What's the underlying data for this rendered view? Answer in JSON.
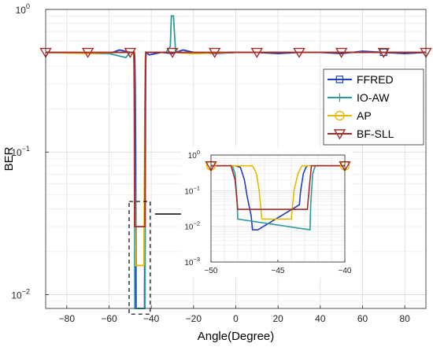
{
  "chart_data": [
    {
      "type": "line",
      "xlabel": "Angle(Degree)",
      "ylabel": "BER",
      "xlim": [
        -90,
        90
      ],
      "ylim": [
        0.008,
        1
      ],
      "yscale": "log",
      "grid": true,
      "legend_position": "right",
      "x_ticks": [
        -80,
        -60,
        -40,
        -20,
        0,
        20,
        40,
        60,
        80
      ],
      "x_tick_labels": [
        "−80",
        "−60",
        "−40",
        "−20",
        "0",
        "20",
        "40",
        "60",
        "80"
      ],
      "y_ticks": [
        0.01,
        0.1,
        1
      ],
      "y_tick_labels": [
        {
          "base": "10",
          "exp": "−2"
        },
        {
          "base": "10",
          "exp": "−1"
        },
        {
          "base": "10",
          "exp": "0"
        }
      ],
      "series": [
        {
          "name": "FFRED",
          "color": "#1f3fbf",
          "marker": "square",
          "x": [
            -90,
            -60,
            -55,
            -50,
            -48,
            -47.8,
            -47.6,
            -47.4,
            -47.2,
            -43.2,
            -43,
            -42.8,
            -42.5,
            -41,
            -35,
            -30,
            -25,
            -20,
            -10,
            0,
            10,
            20,
            30,
            40,
            50,
            60,
            70,
            80,
            90
          ],
          "y": [
            0.5,
            0.49,
            0.52,
            0.5,
            0.5,
            0.45,
            0.3,
            0.1,
            0.008,
            0.008,
            0.1,
            0.3,
            0.5,
            0.48,
            0.5,
            0.49,
            0.52,
            0.5,
            0.49,
            0.5,
            0.5,
            0.49,
            0.5,
            0.5,
            0.49,
            0.51,
            0.5,
            0.49,
            0.5
          ],
          "marker_x": [
            70
          ]
        },
        {
          "name": "IO-AW",
          "color": "#2e9a9a",
          "marker": "plus",
          "x": [
            -90,
            -60,
            -52,
            -50,
            -48.2,
            -48,
            -47.9,
            -47.8,
            -43,
            -42.9,
            -42.6,
            -40,
            -33,
            -31,
            -30.5,
            -29.5,
            -28.5,
            -27,
            -20,
            0,
            20,
            40,
            60,
            80,
            90
          ],
          "y": [
            0.5,
            0.49,
            0.46,
            0.5,
            0.5,
            0.3,
            0.02,
            0.008,
            0.008,
            0.02,
            0.5,
            0.5,
            0.5,
            0.55,
            0.9,
            0.9,
            0.5,
            0.5,
            0.49,
            0.5,
            0.5,
            0.5,
            0.5,
            0.5,
            0.5
          ],
          "marker_x": []
        },
        {
          "name": "AP",
          "color": "#e6b800",
          "marker": "circle",
          "x": [
            -90,
            -70,
            -55,
            -50,
            -48.5,
            -48.2,
            -48,
            -47.9,
            -47.5,
            -43.5,
            -43.2,
            -43,
            -42.9,
            -42.6,
            -40,
            -30,
            -20,
            0,
            20,
            40,
            60,
            80,
            90
          ],
          "y": [
            0.5,
            0.49,
            0.5,
            0.5,
            0.5,
            0.45,
            0.3,
            0.1,
            0.016,
            0.016,
            0.1,
            0.3,
            0.45,
            0.5,
            0.5,
            0.5,
            0.49,
            0.5,
            0.5,
            0.5,
            0.5,
            0.5,
            0.5
          ],
          "marker_x": []
        },
        {
          "name": "BF-SLL",
          "color": "#a52a2a",
          "marker": "triangle-down",
          "x": [
            -90,
            -70,
            -55,
            -50,
            -48.2,
            -48,
            -47.9,
            -43,
            -42.9,
            -42.6,
            -40,
            -30,
            -20,
            -10,
            0,
            10,
            20,
            30,
            40,
            50,
            60,
            70,
            80,
            90
          ],
          "y": [
            0.5,
            0.5,
            0.5,
            0.5,
            0.5,
            0.2,
            0.03,
            0.03,
            0.2,
            0.5,
            0.5,
            0.5,
            0.5,
            0.5,
            0.5,
            0.5,
            0.5,
            0.5,
            0.5,
            0.5,
            0.5,
            0.5,
            0.5,
            0.5
          ],
          "marker_x": [
            -90,
            -70,
            -50,
            -30,
            -10,
            10,
            30,
            50,
            70,
            90
          ]
        }
      ]
    },
    {
      "type": "line",
      "role": "inset",
      "xlim": [
        -50,
        -40
      ],
      "ylim": [
        0.001,
        1
      ],
      "yscale": "log",
      "grid": true,
      "x_ticks": [
        -50,
        -45,
        -40
      ],
      "x_tick_labels": [
        "−50",
        "−45",
        "−40"
      ],
      "y_ticks": [
        0.001,
        0.01,
        0.1,
        1
      ],
      "y_tick_labels": [
        {
          "base": "10",
          "exp": "−3"
        },
        {
          "base": "10",
          "exp": "−2"
        },
        {
          "base": "10",
          "exp": "−1"
        },
        {
          "base": "10",
          "exp": "0"
        }
      ],
      "series": [
        {
          "name": "FFRED",
          "color": "#1f3fbf",
          "x": [
            -50,
            -48.2,
            -47.8,
            -47.5,
            -47.3,
            -47.1,
            -47,
            -46.9,
            -46.5,
            -43.4,
            -43.3,
            -43.1,
            -42.9,
            -42.8,
            -42.6,
            -42.5,
            -40
          ],
          "y": [
            0.5,
            0.5,
            0.45,
            0.2,
            0.07,
            0.03,
            0.02,
            0.008,
            0.008,
            0.04,
            0.1,
            0.3,
            0.45,
            0.5,
            0.5,
            0.5,
            0.5
          ]
        },
        {
          "name": "IO-AW",
          "color": "#2e9a9a",
          "x": [
            -50,
            -48.4,
            -48.2,
            -48.05,
            -48,
            -42.6,
            -42.55,
            -42.4,
            -42.2,
            -40
          ],
          "y": [
            0.5,
            0.5,
            0.3,
            0.05,
            0.016,
            0.008,
            0.04,
            0.3,
            0.5,
            0.5
          ]
        },
        {
          "name": "AP",
          "color": "#e6b800",
          "x": [
            -50,
            -47.2,
            -46.9,
            -46.6,
            -46.4,
            -46.3,
            -46.2,
            -44,
            -43.8,
            -43.5,
            -43.2,
            -43,
            -40
          ],
          "y": [
            0.5,
            0.5,
            0.5,
            0.3,
            0.1,
            0.04,
            0.016,
            0.016,
            0.1,
            0.3,
            0.5,
            0.5,
            0.5
          ]
        },
        {
          "name": "BF-SLL",
          "color": "#a52a2a",
          "x": [
            -50,
            -48.5,
            -48.2,
            -48,
            -42.8,
            -42.6,
            -42.5,
            -40
          ],
          "y": [
            0.5,
            0.5,
            0.2,
            0.03,
            0.03,
            0.2,
            0.5,
            0.5
          ]
        }
      ]
    }
  ]
}
